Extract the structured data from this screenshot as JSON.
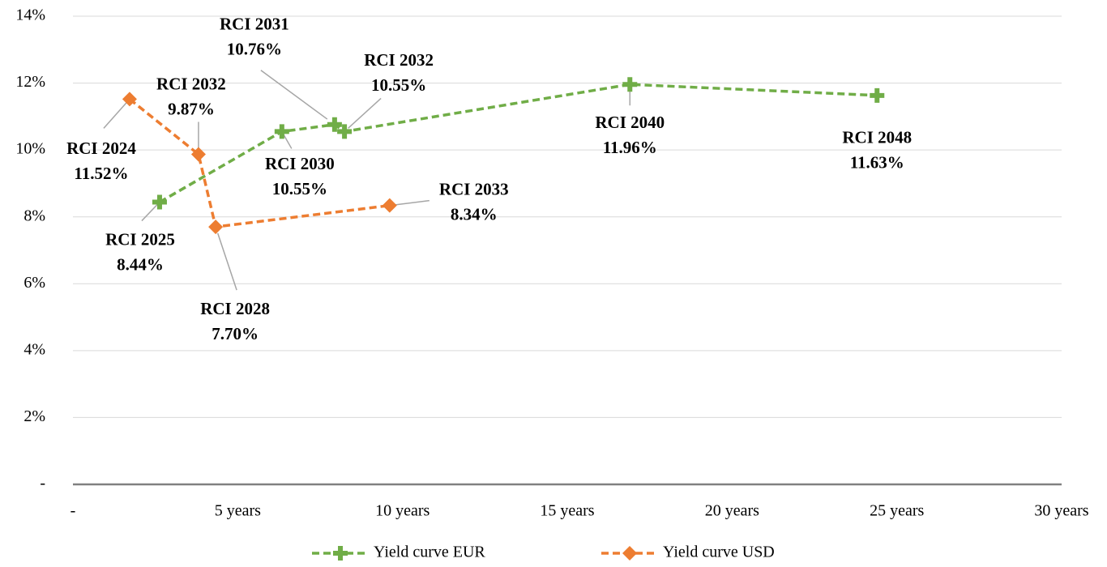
{
  "chart_data": {
    "type": "line",
    "xlim": [
      0,
      30
    ],
    "xticks": [
      {
        "value": 0,
        "label": "-"
      },
      {
        "value": 5,
        "label": "5 years"
      },
      {
        "value": 10,
        "label": "10 years"
      },
      {
        "value": 15,
        "label": "15 years"
      },
      {
        "value": 20,
        "label": "20 years"
      },
      {
        "value": 25,
        "label": "25 years"
      },
      {
        "value": 30,
        "label": "30 years"
      }
    ],
    "ylim": [
      0,
      14
    ],
    "yticks": [
      {
        "value": 0,
        "label": "-"
      },
      {
        "value": 2,
        "label": "2%"
      },
      {
        "value": 4,
        "label": "4%"
      },
      {
        "value": 6,
        "label": "6%"
      },
      {
        "value": 8,
        "label": "8%"
      },
      {
        "value": 10,
        "label": "10%"
      },
      {
        "value": 12,
        "label": "12%"
      },
      {
        "value": 14,
        "label": "14%"
      }
    ],
    "grid": true,
    "legend": "bottom",
    "series": [
      {
        "name": "Yield curve EUR",
        "color": "#70ad47",
        "marker": "plus",
        "x": [
          2.63,
          6.34,
          7.94,
          8.24,
          16.9,
          24.4
        ],
        "values": [
          8.44,
          10.55,
          10.76,
          10.55,
          11.96,
          11.63
        ],
        "point_labels": [
          "RCI 2025",
          "RCI 2030",
          "RCI 2031",
          "RCI 2032",
          "RCI 2040",
          "RCI 2048"
        ],
        "value_labels": [
          "8.44%",
          "10.55%",
          "10.76%",
          "10.55%",
          "11.96%",
          "11.63%"
        ]
      },
      {
        "name": "Yield curve USD",
        "color": "#ed7d31",
        "marker": "diamond",
        "x": [
          1.72,
          3.81,
          4.33,
          9.61
        ],
        "values": [
          11.52,
          9.87,
          7.7,
          8.34
        ],
        "point_labels": [
          "RCI 2024",
          "RCI 2032",
          "RCI 2028",
          "RCI 2033"
        ],
        "value_labels": [
          "11.52%",
          "9.87%",
          "7.70%",
          "8.34%"
        ]
      }
    ]
  }
}
